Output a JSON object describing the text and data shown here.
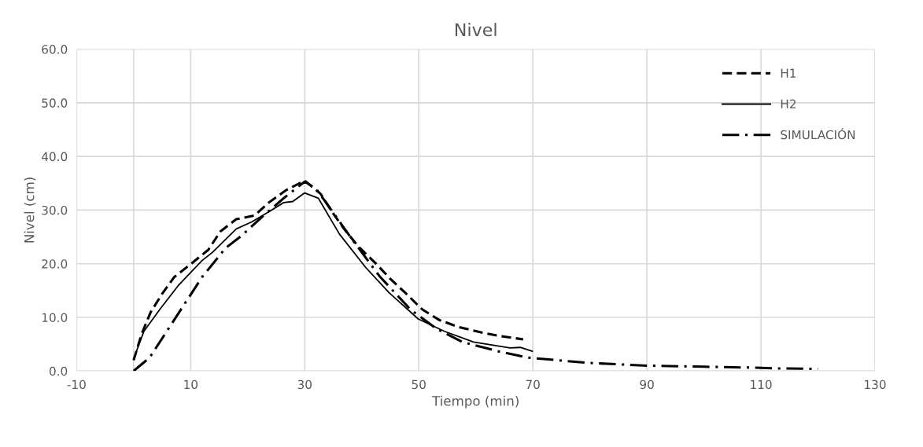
{
  "chart_data": {
    "type": "line",
    "title": "Nivel",
    "xlabel": "Tiempo (min)",
    "ylabel": "Nivel (cm)",
    "xlim": [
      -10,
      130
    ],
    "xticks": [
      -10,
      10,
      30,
      50,
      70,
      90,
      110,
      130
    ],
    "ylim": [
      0,
      60
    ],
    "yticks": [
      {
        "value": 0,
        "label": "0.0"
      },
      {
        "value": 10,
        "label": "10.0"
      },
      {
        "value": 20,
        "label": "20.0"
      },
      {
        "value": 30,
        "label": "30.0"
      },
      {
        "value": 40,
        "label": "40.0"
      },
      {
        "value": 50,
        "label": "50.0"
      },
      {
        "value": 60,
        "label": "60.0"
      }
    ],
    "grid": true,
    "legend": "top right",
    "marker": "none",
    "series": [
      {
        "name": "H1",
        "color": "#000000",
        "line_style": "dashed",
        "x": [
          0,
          1.4,
          3,
          5,
          7.1,
          10.1,
          13.1,
          15.2,
          18,
          21.2,
          23.7,
          26.7,
          30,
          32.8,
          35.1,
          36.9,
          39.5,
          42.5,
          45,
          47.8,
          50.6,
          53.6,
          57,
          60.9,
          64.4,
          68.3
        ],
        "values": [
          2,
          6.9,
          11,
          14.4,
          17.5,
          20,
          22.6,
          26,
          28.3,
          29,
          31.4,
          33.7,
          35.5,
          33,
          29.2,
          26.5,
          23.1,
          20,
          17.2,
          14.4,
          11.5,
          9.5,
          8.2,
          7.2,
          6.5,
          5.9
        ]
      },
      {
        "name": "H2",
        "color": "#000000",
        "line_style": "solid",
        "x": [
          0,
          1.8,
          4.6,
          7.8,
          12,
          13.8,
          18,
          20.7,
          23.9,
          26.3,
          27.9,
          30,
          32.4,
          36.1,
          40.7,
          44.8,
          49.9,
          54.5,
          59.6,
          66,
          67.8,
          69.9
        ],
        "values": [
          2.3,
          7.4,
          11.5,
          15.9,
          20.6,
          22.1,
          26.5,
          27.8,
          29.8,
          31.4,
          31.6,
          33.2,
          32.2,
          25.5,
          19.3,
          14.6,
          9.7,
          7.4,
          5.4,
          4.3,
          4.4,
          3.7
        ]
      },
      {
        "name": "SIMULACIÓN",
        "color": "#000000",
        "line_style": "dashdot",
        "x": [
          0,
          2.8,
          5.5,
          8.5,
          12,
          16.1,
          18.9,
          22.6,
          26.3,
          30,
          32,
          35.2,
          38.4,
          43.1,
          48.5,
          53.1,
          57.7,
          64.2,
          69.2,
          70,
          80,
          90,
          100,
          110,
          112,
          120
        ],
        "values": [
          0,
          2.5,
          6.9,
          11.8,
          17.5,
          22.9,
          25.2,
          28.8,
          32.2,
          35.3,
          34,
          29.2,
          24.4,
          17.7,
          11.5,
          7.9,
          5.4,
          3.6,
          2.5,
          2.4,
          1.5,
          1.0,
          0.8,
          0.6,
          0.5,
          0.4
        ]
      }
    ]
  }
}
